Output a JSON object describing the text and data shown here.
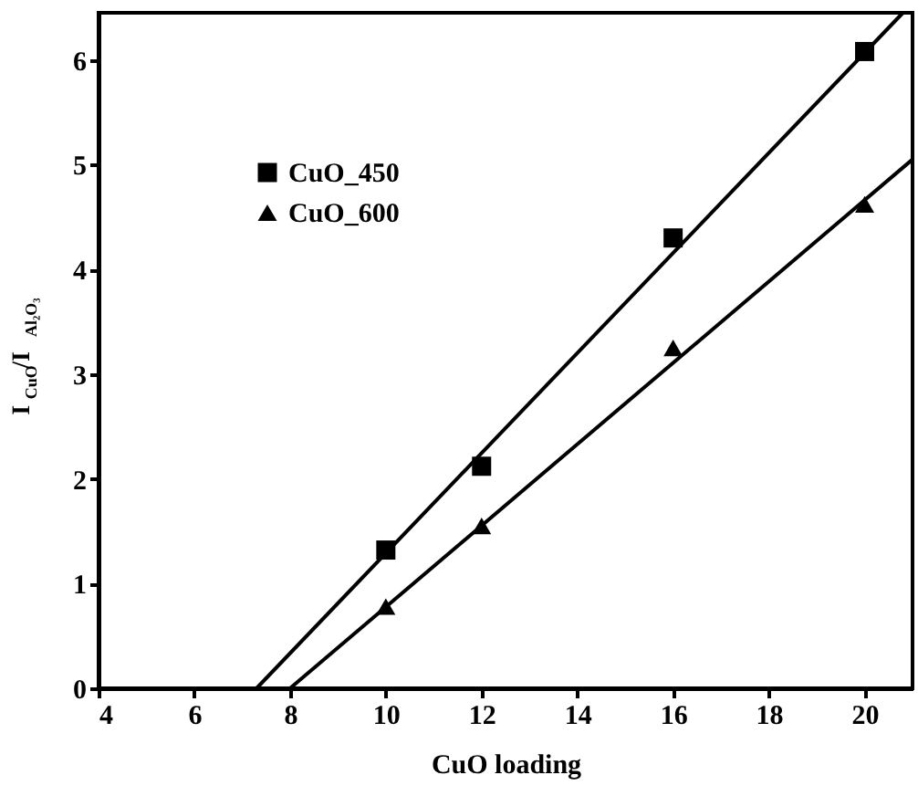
{
  "chart_data": {
    "type": "scatter",
    "xlabel": "CuO loading",
    "ylabel": "I$_{CuO}$/I$_{Al₂O₃}$",
    "xlim": [
      4,
      21
    ],
    "xticks": [
      4,
      6,
      8,
      10,
      12,
      14,
      16,
      18,
      20
    ],
    "ylim": [
      0,
      6.45
    ],
    "yticks": [
      0,
      1,
      2,
      3,
      4,
      5,
      6
    ],
    "grid": false,
    "legend": "top left",
    "series": [
      {
        "name": "CuO_450",
        "color": "#000000",
        "marker": "square",
        "x": [
          10,
          12,
          16,
          20
        ],
        "values": [
          1.32,
          2.12,
          4.3,
          6.08
        ]
      },
      {
        "name": "CuO_600",
        "color": "#000000",
        "marker": "triangle",
        "x": [
          10,
          12,
          16,
          20
        ],
        "values": [
          0.78,
          1.55,
          3.25,
          4.62
        ]
      },
      {
        "type": "line",
        "color": "#000000",
        "x": [
          7.3,
          20.8
        ],
        "values": [
          0,
          6.45
        ]
      },
      {
        "type": "line",
        "color": "#000000",
        "x": [
          8,
          21
        ],
        "values": [
          0,
          5.05
        ]
      }
    ]
  }
}
